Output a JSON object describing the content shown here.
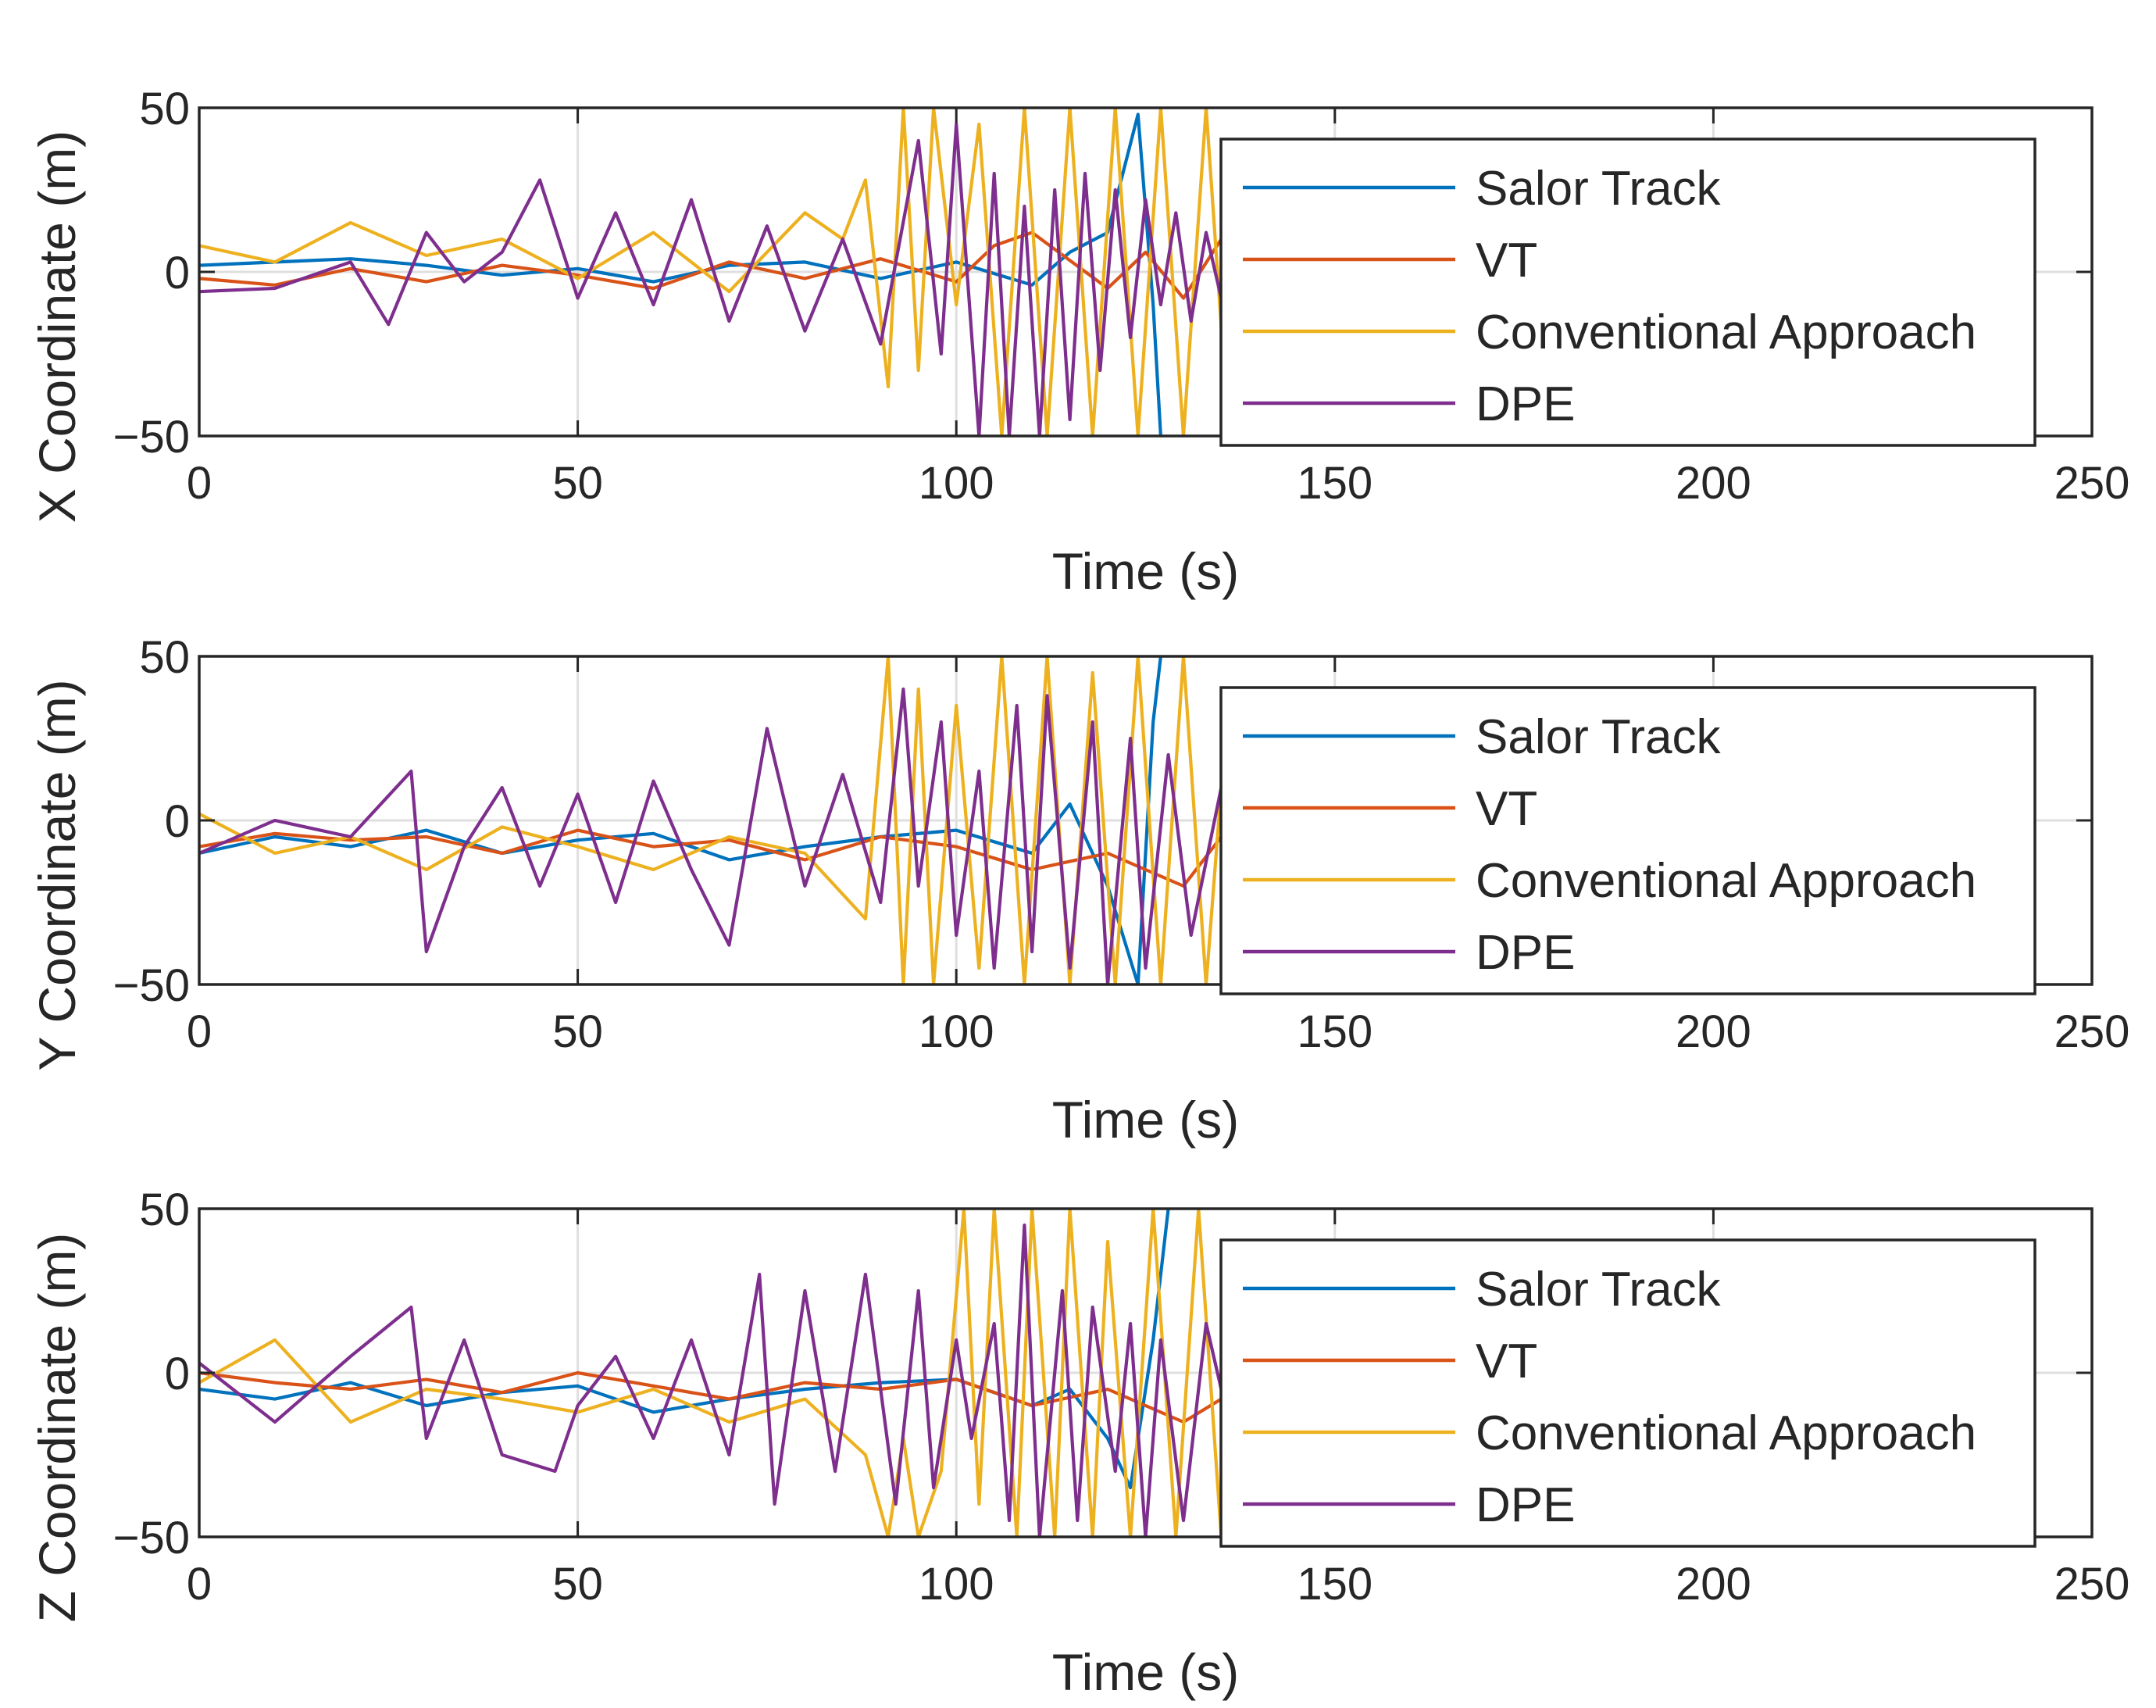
{
  "chart_data": [
    {
      "type": "line",
      "xlabel": "Time (s)",
      "ylabel": "X Coordinate (m)",
      "xlim": [
        0,
        250
      ],
      "ylim": [
        -50,
        50
      ],
      "xticks": [
        "0",
        "50",
        "100",
        "150",
        "200",
        "250"
      ],
      "yticks": [
        "−50",
        "0",
        "50"
      ],
      "grid": true,
      "legend_position": "top-right",
      "series": [
        {
          "name": "Salor Track",
          "color": "#0072BD",
          "x": [
            0,
            10,
            20,
            30,
            40,
            50,
            60,
            70,
            80,
            90,
            100,
            110,
            115,
            120,
            124,
            126,
            127
          ],
          "y": [
            2,
            3,
            4,
            2,
            -1,
            1,
            -3,
            2,
            3,
            -2,
            3,
            -4,
            6,
            12,
            48,
            -10,
            -50
          ]
        },
        {
          "name": "VT",
          "color": "#D95319",
          "x": [
            0,
            10,
            20,
            30,
            40,
            50,
            60,
            70,
            80,
            90,
            100,
            105,
            110,
            120,
            125,
            130,
            135
          ],
          "y": [
            -2,
            -4,
            1,
            -3,
            2,
            -1,
            -5,
            3,
            -2,
            4,
            -3,
            8,
            12,
            -5,
            6,
            -8,
            10
          ]
        },
        {
          "name": "Conventional Approach",
          "color": "#EDB120",
          "x": [
            0,
            10,
            20,
            30,
            40,
            50,
            60,
            70,
            80,
            85,
            88,
            91,
            93,
            95,
            97,
            100,
            103,
            106,
            109,
            112,
            115,
            118,
            121,
            124,
            127,
            130,
            133,
            136
          ],
          "y": [
            8,
            3,
            15,
            5,
            10,
            -2,
            12,
            -6,
            18,
            10,
            28,
            -35,
            50,
            -30,
            50,
            -10,
            45,
            -50,
            50,
            -50,
            50,
            -50,
            50,
            -50,
            50,
            -50,
            50,
            -50
          ]
        },
        {
          "name": "DPE",
          "color": "#7E2F8E",
          "x": [
            0,
            10,
            20,
            25,
            30,
            35,
            40,
            45,
            50,
            55,
            60,
            65,
            70,
            75,
            80,
            85,
            90,
            95,
            98,
            100,
            103,
            105,
            107,
            109,
            111,
            113,
            115,
            117,
            119,
            121,
            123,
            125,
            127,
            129,
            131,
            133,
            135
          ],
          "y": [
            -6,
            -5,
            3,
            -16,
            12,
            -3,
            6,
            28,
            -8,
            18,
            -10,
            22,
            -15,
            14,
            -18,
            10,
            -22,
            40,
            -25,
            45,
            -50,
            30,
            -50,
            20,
            -50,
            25,
            -45,
            30,
            -30,
            25,
            -20,
            22,
            -10,
            18,
            -15,
            12,
            -8
          ]
        }
      ]
    },
    {
      "type": "line",
      "xlabel": "Time (s)",
      "ylabel": "Y Coordinate (m)",
      "xlim": [
        0,
        250
      ],
      "ylim": [
        -50,
        50
      ],
      "xticks": [
        "0",
        "50",
        "100",
        "150",
        "200",
        "250"
      ],
      "yticks": [
        "−50",
        "0",
        "50"
      ],
      "grid": true,
      "legend_position": "top-right",
      "series": [
        {
          "name": "Salor Track",
          "color": "#0072BD",
          "x": [
            0,
            10,
            20,
            30,
            40,
            50,
            60,
            70,
            80,
            90,
            100,
            110,
            115,
            120,
            124,
            126,
            127
          ],
          "y": [
            -10,
            -5,
            -8,
            -3,
            -10,
            -6,
            -4,
            -12,
            -8,
            -5,
            -3,
            -10,
            5,
            -20,
            -50,
            30,
            50
          ]
        },
        {
          "name": "VT",
          "color": "#D95319",
          "x": [
            0,
            10,
            20,
            30,
            40,
            50,
            60,
            70,
            80,
            90,
            100,
            110,
            120,
            130,
            135
          ],
          "y": [
            -8,
            -4,
            -6,
            -5,
            -10,
            -3,
            -8,
            -6,
            -12,
            -5,
            -8,
            -15,
            -10,
            -20,
            -5
          ]
        },
        {
          "name": "Conventional Approach",
          "color": "#EDB120",
          "x": [
            0,
            10,
            20,
            30,
            40,
            50,
            60,
            70,
            80,
            88,
            91,
            93,
            95,
            97,
            100,
            103,
            106,
            109,
            112,
            115,
            118,
            121,
            124,
            127,
            130,
            133,
            136
          ],
          "y": [
            2,
            -10,
            -5,
            -15,
            -2,
            -8,
            -15,
            -5,
            -10,
            -30,
            50,
            -50,
            40,
            -50,
            35,
            -45,
            50,
            -50,
            50,
            -50,
            45,
            -50,
            50,
            -50,
            50,
            -50,
            40
          ]
        },
        {
          "name": "DPE",
          "color": "#7E2F8E",
          "x": [
            0,
            10,
            20,
            28,
            30,
            35,
            40,
            45,
            50,
            55,
            60,
            65,
            70,
            75,
            80,
            85,
            90,
            93,
            95,
            98,
            100,
            103,
            105,
            108,
            110,
            112,
            115,
            118,
            120,
            123,
            125,
            128,
            131,
            135
          ],
          "y": [
            -10,
            0,
            -5,
            15,
            -40,
            -8,
            10,
            -20,
            8,
            -25,
            12,
            -15,
            -38,
            28,
            -20,
            14,
            -25,
            40,
            -20,
            30,
            -35,
            15,
            -45,
            35,
            -40,
            38,
            -45,
            30,
            -50,
            25,
            -45,
            20,
            -35,
            10
          ]
        }
      ]
    },
    {
      "type": "line",
      "xlabel": "Time (s)",
      "ylabel": "Z Coordinate (m)",
      "xlim": [
        0,
        250
      ],
      "ylim": [
        -50,
        50
      ],
      "xticks": [
        "0",
        "50",
        "100",
        "150",
        "200",
        "250"
      ],
      "yticks": [
        "−50",
        "0",
        "50"
      ],
      "grid": true,
      "legend_position": "top-right",
      "series": [
        {
          "name": "Salor Track",
          "color": "#0072BD",
          "x": [
            0,
            10,
            20,
            30,
            40,
            50,
            60,
            70,
            80,
            90,
            100,
            110,
            115,
            120,
            123,
            126,
            128
          ],
          "y": [
            -5,
            -8,
            -3,
            -10,
            -6,
            -4,
            -12,
            -8,
            -5,
            -3,
            -2,
            -10,
            -5,
            -20,
            -35,
            10,
            50
          ]
        },
        {
          "name": "VT",
          "color": "#D95319",
          "x": [
            0,
            10,
            20,
            30,
            40,
            50,
            60,
            70,
            80,
            90,
            100,
            110,
            120,
            130,
            135
          ],
          "y": [
            0,
            -3,
            -5,
            -2,
            -6,
            0,
            -4,
            -8,
            -3,
            -5,
            -2,
            -10,
            -5,
            -15,
            -8
          ]
        },
        {
          "name": "Conventional Approach",
          "color": "#EDB120",
          "x": [
            0,
            10,
            20,
            30,
            40,
            50,
            60,
            70,
            80,
            88,
            91,
            93,
            95,
            98,
            101,
            103,
            105,
            108,
            110,
            113,
            115,
            118,
            120,
            123,
            126,
            129,
            132,
            135
          ],
          "y": [
            -3,
            10,
            -15,
            -5,
            -8,
            -12,
            -5,
            -15,
            -8,
            -25,
            -50,
            -20,
            -50,
            -30,
            50,
            -40,
            50,
            -50,
            50,
            -50,
            50,
            -50,
            40,
            -50,
            50,
            -50,
            50,
            -50
          ]
        },
        {
          "name": "DPE",
          "color": "#7E2F8E",
          "x": [
            0,
            10,
            20,
            28,
            30,
            35,
            40,
            47,
            50,
            55,
            60,
            65,
            70,
            74,
            76,
            80,
            84,
            88,
            92,
            95,
            97,
            100,
            102,
            105,
            107,
            109,
            111,
            114,
            116,
            118,
            121,
            123,
            125,
            127,
            130,
            133,
            135
          ],
          "y": [
            3,
            -15,
            5,
            20,
            -20,
            10,
            -25,
            -30,
            -10,
            5,
            -20,
            10,
            -25,
            30,
            -40,
            25,
            -30,
            30,
            -40,
            25,
            -35,
            10,
            -20,
            15,
            -45,
            45,
            -50,
            25,
            -45,
            20,
            -30,
            15,
            -50,
            10,
            -45,
            15,
            -5
          ]
        }
      ]
    }
  ]
}
